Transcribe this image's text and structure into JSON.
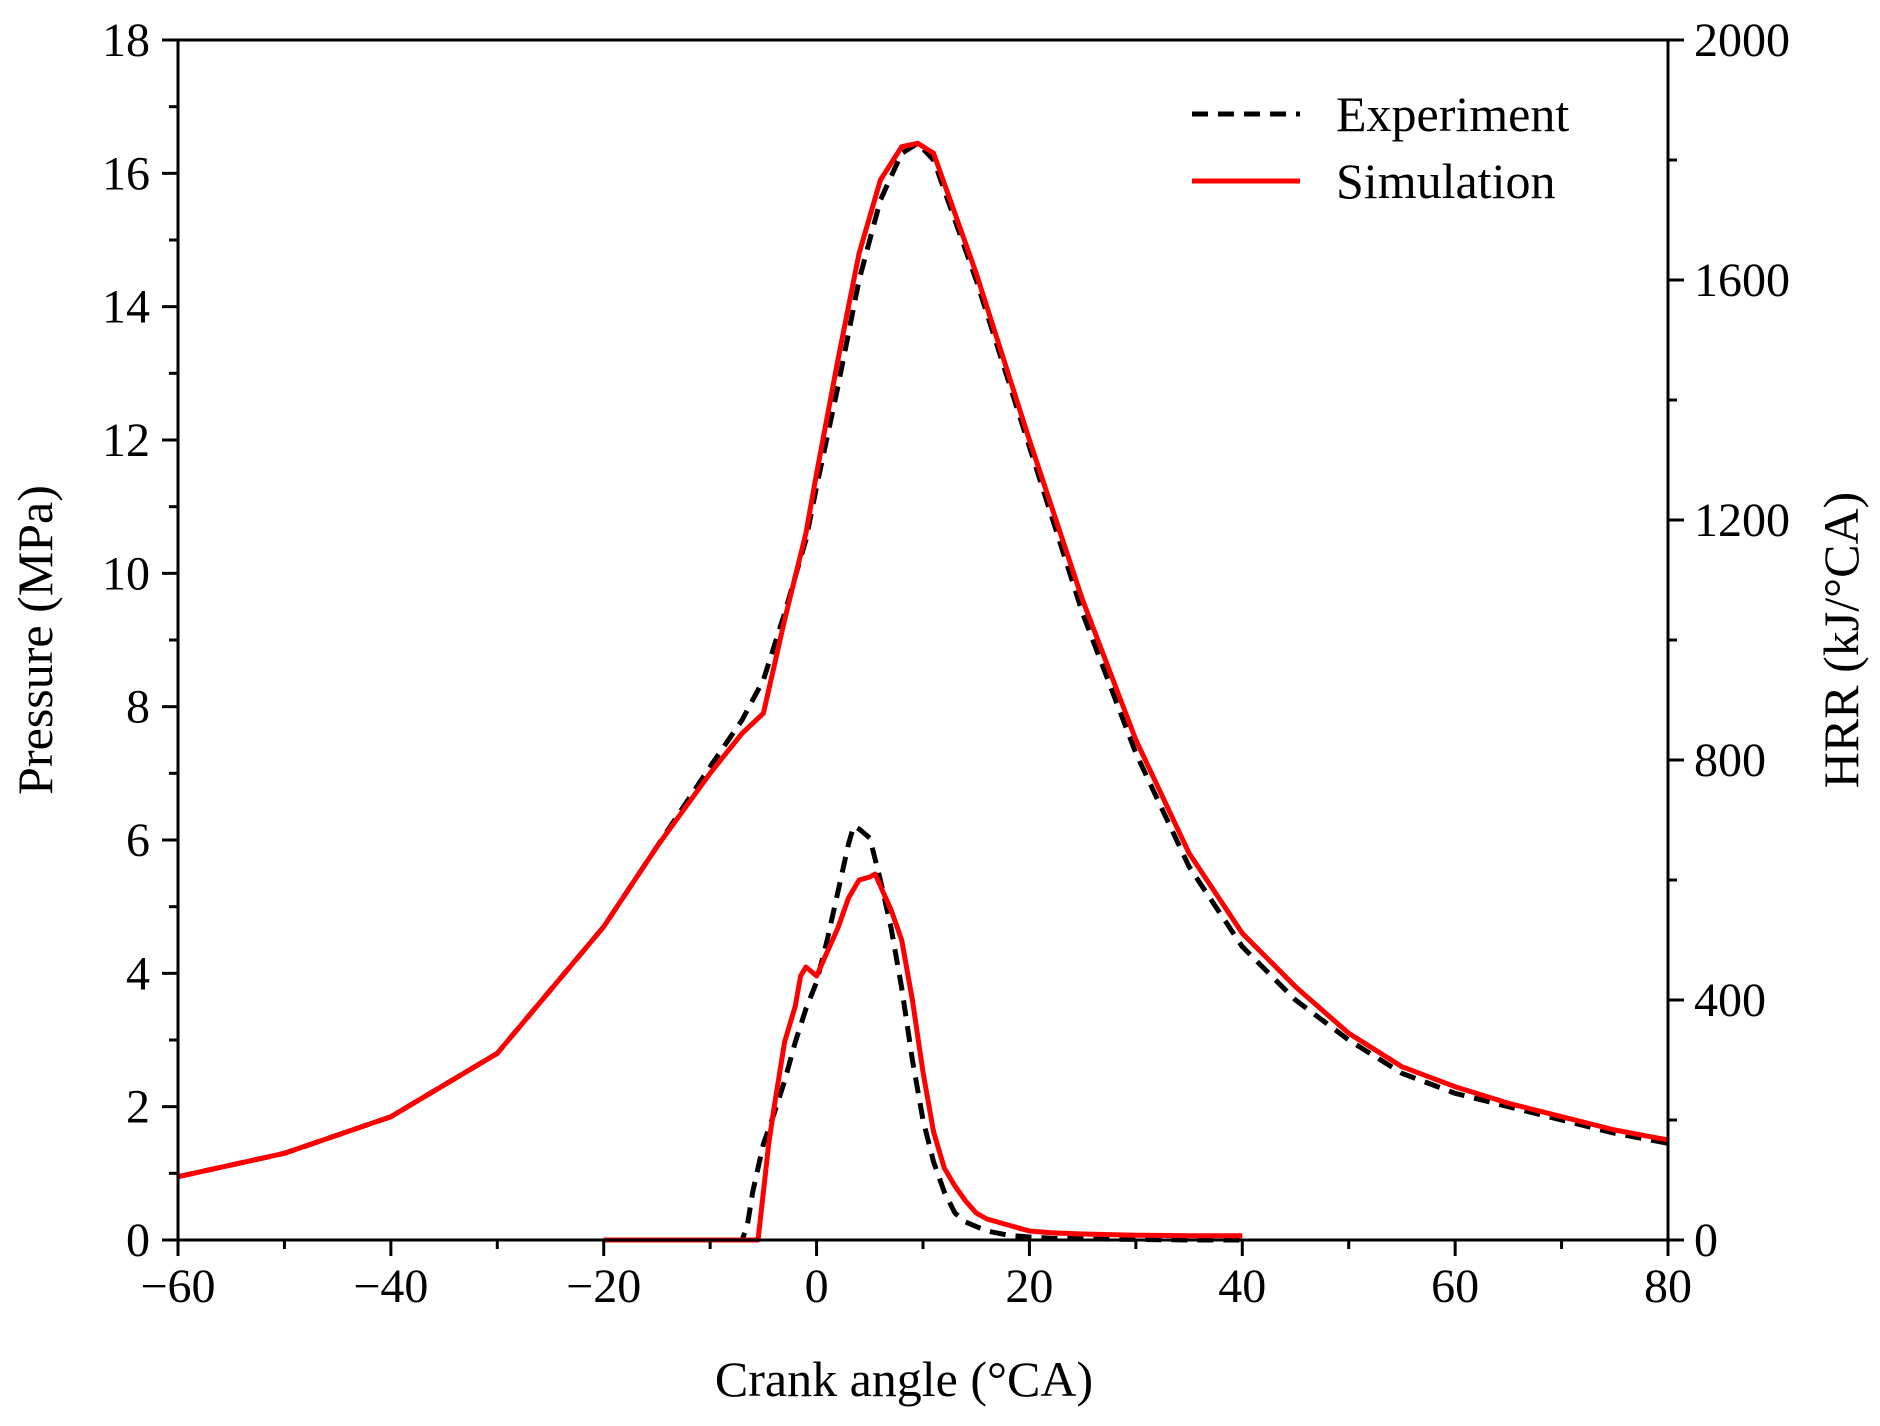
{
  "chart_data": {
    "type": "line",
    "title": "",
    "xlabel": "Crank angle (°CA)",
    "ylabel": "Pressure (MPa)",
    "y2label": "HRR (kJ/°CA)",
    "xlim": [
      -60,
      80
    ],
    "ylim": [
      0,
      18
    ],
    "y2lim": [
      0,
      2000
    ],
    "xticks": [
      -60,
      -40,
      -20,
      0,
      20,
      40,
      60,
      80
    ],
    "yticks": [
      0,
      2,
      4,
      6,
      8,
      10,
      12,
      14,
      16,
      18
    ],
    "y2ticks": [
      0,
      400,
      800,
      1200,
      1600,
      2000
    ],
    "xtick_labels": [
      "−60",
      "−40",
      "−20",
      "0",
      "20",
      "40",
      "60",
      "80"
    ],
    "ytick_labels": [
      "0",
      "2",
      "4",
      "6",
      "8",
      "10",
      "12",
      "14",
      "16",
      "18"
    ],
    "y2tick_labels": [
      "0",
      "400",
      "800",
      "1200",
      "1600",
      "2000"
    ],
    "legend": {
      "position": "top-right",
      "entries": [
        {
          "label": "Experiment",
          "color": "#000000",
          "style": "dashed"
        },
        {
          "label": "Simulation",
          "color": "#ff0000",
          "style": "solid"
        }
      ]
    },
    "series": [
      {
        "name": "Experiment pressure",
        "axis": "left",
        "color": "#000000",
        "style": "dashed",
        "x": [
          -60,
          -50,
          -40,
          -30,
          -20,
          -15,
          -10,
          -7,
          -5,
          -3,
          -1,
          0,
          2,
          4,
          6,
          8,
          9.5,
          11,
          13,
          15,
          17,
          20,
          25,
          30,
          35,
          40,
          45,
          50,
          55,
          60,
          65,
          70,
          75,
          80
        ],
        "y": [
          0.95,
          1.3,
          1.85,
          2.8,
          4.7,
          5.9,
          7.1,
          7.8,
          8.4,
          9.4,
          10.5,
          11.3,
          12.8,
          14.4,
          15.6,
          16.3,
          16.45,
          16.2,
          15.3,
          14.4,
          13.4,
          11.9,
          9.4,
          7.3,
          5.6,
          4.4,
          3.6,
          3.0,
          2.5,
          2.2,
          2.0,
          1.8,
          1.6,
          1.45
        ]
      },
      {
        "name": "Simulation pressure",
        "axis": "left",
        "color": "#ff0000",
        "style": "solid",
        "x": [
          -60,
          -50,
          -40,
          -30,
          -20,
          -15,
          -10,
          -7,
          -5,
          -3,
          -1,
          0,
          2,
          4,
          6,
          8,
          9.5,
          11,
          13,
          15,
          17,
          20,
          25,
          30,
          35,
          40,
          45,
          50,
          55,
          60,
          65,
          70,
          75,
          80
        ],
        "y": [
          0.95,
          1.3,
          1.85,
          2.8,
          4.7,
          5.9,
          7.0,
          7.6,
          7.9,
          9.3,
          10.6,
          11.5,
          13.2,
          14.8,
          15.9,
          16.4,
          16.45,
          16.3,
          15.4,
          14.5,
          13.5,
          12.0,
          9.6,
          7.5,
          5.8,
          4.6,
          3.8,
          3.1,
          2.6,
          2.3,
          2.05,
          1.85,
          1.65,
          1.5
        ]
      },
      {
        "name": "Experiment HRR",
        "axis": "right",
        "color": "#000000",
        "style": "dashed",
        "x": [
          -20,
          -7,
          -6.5,
          -6,
          -5,
          -4,
          -3,
          -2,
          -1,
          0,
          1,
          2,
          3,
          3.5,
          4,
          5,
          6,
          7,
          8,
          9,
          10,
          11,
          12,
          13,
          14,
          16,
          18,
          20,
          22,
          25,
          30,
          35,
          40
        ],
        "y": [
          0,
          0,
          25,
          80,
          160,
          210,
          265,
          330,
          385,
          430,
          500,
          580,
          660,
          690,
          685,
          670,
          600,
          520,
          420,
          300,
          200,
          130,
          80,
          45,
          30,
          15,
          8,
          5,
          3,
          2,
          1,
          0,
          0
        ]
      },
      {
        "name": "Simulation HRR",
        "axis": "right",
        "color": "#ff0000",
        "style": "solid",
        "x": [
          -20,
          -5.5,
          -5,
          -4.5,
          -4,
          -3,
          -2,
          -1.5,
          -1,
          0,
          0.5,
          1,
          2,
          3,
          4,
          5,
          5.5,
          6,
          7,
          8,
          9,
          10,
          11,
          12,
          13,
          14,
          15,
          16,
          18,
          20,
          22,
          25,
          30,
          35,
          40
        ],
        "y": [
          0,
          0,
          80,
          160,
          220,
          330,
          390,
          440,
          455,
          440,
          460,
          480,
          520,
          570,
          600,
          605,
          610,
          590,
          550,
          500,
          400,
          280,
          180,
          120,
          90,
          65,
          45,
          35,
          25,
          15,
          12,
          10,
          8,
          7,
          7
        ]
      }
    ]
  }
}
